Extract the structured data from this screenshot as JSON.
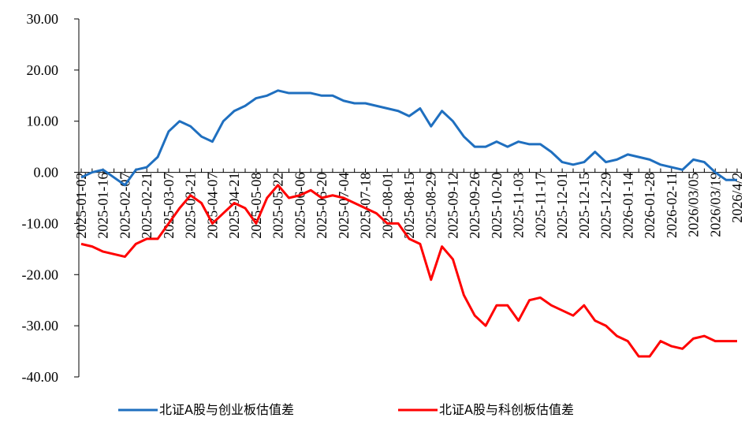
{
  "chart_data": {
    "type": "line",
    "categories": [
      "2025-01-02",
      null,
      "2025-01-16",
      null,
      "2025-02-07",
      null,
      "2025-02-21",
      null,
      "2025-03-07",
      null,
      "2025-03-21",
      null,
      "2025-04-07",
      null,
      "2025-04-21",
      null,
      "2025-05-08",
      null,
      "2025-05-22",
      null,
      "2025-06-06",
      null,
      "2025-06-20",
      null,
      "2025-07-04",
      null,
      "2025-07-18",
      null,
      "2025-08-01",
      null,
      "2025-08-15",
      null,
      "2025-08-29",
      null,
      "2025-09-12",
      null,
      "2025-09-26",
      null,
      "2025-10-20",
      null,
      "2025-11-03",
      null,
      "2025-11-17",
      null,
      "2025-12-01",
      null,
      "2025-12-15",
      null,
      "2025-12-29",
      null,
      "2026-01-14",
      null,
      "2026-01-28",
      null,
      "2026-02-11",
      null,
      "2026/03/05",
      null,
      "2026/03/19",
      null,
      "2026/4/2"
    ],
    "series": [
      {
        "name": "北证A股与创业板估值差",
        "color": "#1f6fbf",
        "values": [
          -1,
          0,
          0.5,
          -1,
          -2.5,
          0.5,
          1,
          3,
          8,
          10,
          9,
          7,
          6,
          10,
          12,
          13,
          14.5,
          15,
          16,
          15.5,
          15.5,
          15.5,
          15,
          15,
          14,
          13.5,
          13.5,
          13,
          12.5,
          12,
          11,
          12.5,
          9,
          12,
          10,
          7,
          5,
          5,
          6,
          5,
          6,
          5.5,
          5.5,
          4,
          2,
          1.5,
          2,
          4,
          2,
          2.5,
          3.5,
          3,
          2.5,
          1.5,
          1,
          0.5,
          2.5,
          2,
          0,
          -1.5,
          -1.5
        ]
      },
      {
        "name": "北证A股与科创板估值差",
        "color": "#ff0000",
        "values": [
          -14,
          -14.5,
          -15.5,
          -16,
          -16.5,
          -14,
          -13,
          -13,
          -10,
          -7,
          -4.5,
          -6,
          -10,
          -8,
          -6,
          -7,
          -10,
          -5,
          -2.5,
          -5,
          -4.5,
          -3.5,
          -5,
          -4.5,
          -5,
          -6,
          -7,
          -8,
          -10,
          -10,
          -13,
          -14,
          -21,
          -14.5,
          -17,
          -24,
          -28,
          -30,
          -26,
          -26,
          -29,
          -25,
          -24.5,
          -26,
          -27,
          -28,
          -26,
          -29,
          -30,
          -32,
          -33,
          -36,
          -36,
          -33,
          -34,
          -34.5,
          -32.5,
          -32,
          -33,
          -33,
          -33
        ]
      }
    ],
    "ylim": [
      -40,
      30
    ],
    "yticks": [
      {
        "value": 30,
        "label": "30.00"
      },
      {
        "value": 20,
        "label": "20.00"
      },
      {
        "value": 10,
        "label": "10.00"
      },
      {
        "value": 0,
        "label": "0.00"
      },
      {
        "value": -10,
        "label": "-10.00"
      },
      {
        "value": -20,
        "label": "-20.00"
      },
      {
        "value": -30,
        "label": "-30.00"
      },
      {
        "value": -40,
        "label": "-40.00"
      }
    ],
    "legend": "bottom"
  }
}
